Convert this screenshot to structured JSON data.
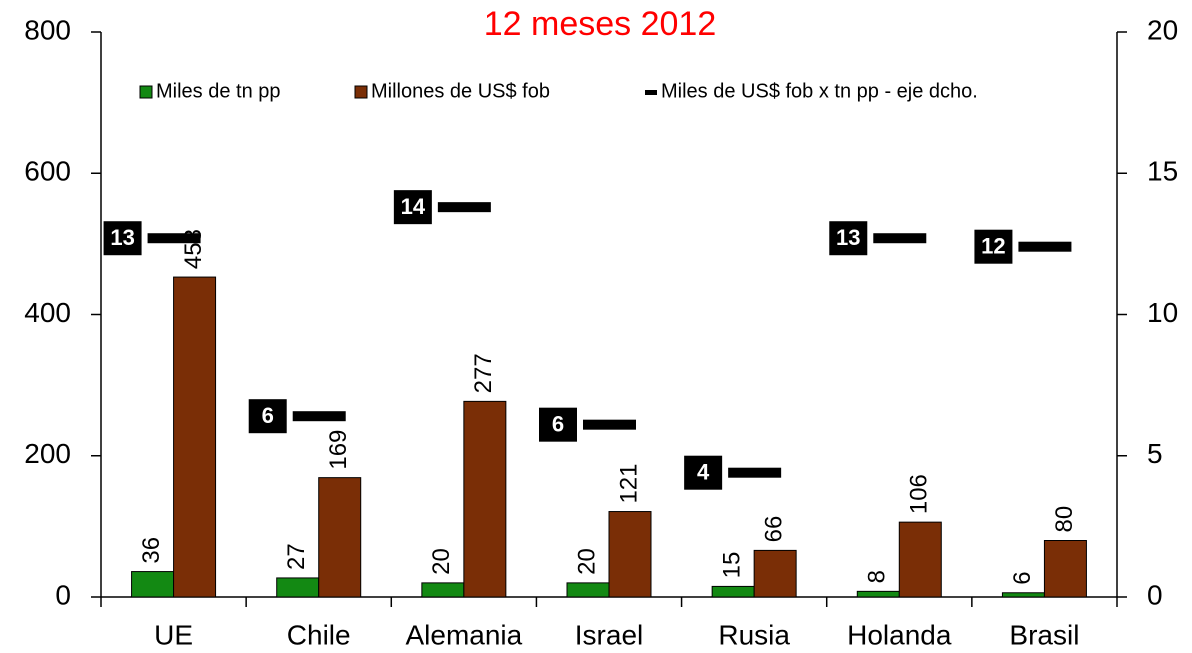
{
  "chart_data": {
    "type": "bar",
    "title": "12 meses 2012",
    "categories": [
      "UE",
      "Chile",
      "Alemania",
      "Israel",
      "Rusia",
      "Holanda",
      "Brasil"
    ],
    "series": [
      {
        "name": "Miles de tn pp",
        "color": "#138913",
        "values": [
          36,
          27,
          20,
          20,
          15,
          8,
          6
        ]
      },
      {
        "name": "Millones de US$ fob",
        "color": "#7a2e06",
        "values": [
          453,
          169,
          277,
          121,
          66,
          106,
          80
        ]
      },
      {
        "name": "Miles de US$ fob x tn pp - eje dcho.",
        "color": "#000000",
        "axis": "y2",
        "marker": "dash",
        "values": [
          12.7,
          6.4,
          13.8,
          6.1,
          4.4,
          12.7,
          12.4
        ],
        "value_labels": [
          "13",
          "6",
          "14",
          "6",
          "4",
          "13",
          "12"
        ]
      }
    ],
    "ylim": [
      0,
      800
    ],
    "yticks": [
      0,
      200,
      400,
      600,
      800
    ],
    "y2lim": [
      0,
      20
    ],
    "y2ticks": [
      0,
      5,
      10,
      15,
      20
    ],
    "title_color": "#ff0000",
    "legend": "top"
  }
}
